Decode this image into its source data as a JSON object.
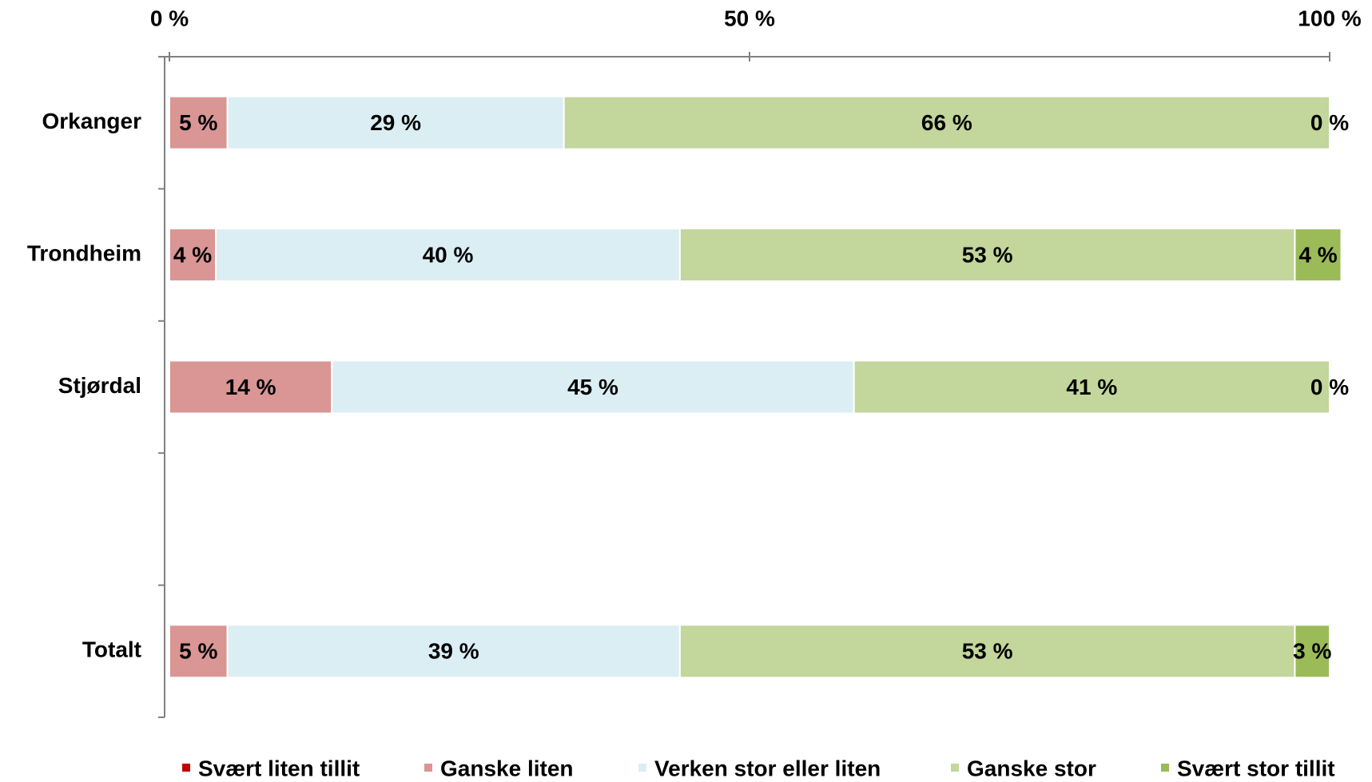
{
  "chart_data": {
    "type": "stacked-barh",
    "categories": [
      "Orkanger",
      "Trondheim",
      "Stjørdal",
      null,
      "Totalt"
    ],
    "series": [
      {
        "name": "Svært liten tillit",
        "color": "#c00000",
        "values": [
          0,
          0,
          0,
          null,
          0
        ]
      },
      {
        "name": "Ganske liten",
        "color": "#d99694",
        "values": [
          5,
          4,
          14,
          null,
          5
        ],
        "value_labels": [
          "5 %",
          "4 %",
          "14 %",
          null,
          "5 %"
        ]
      },
      {
        "name": "Verken stor eller liten",
        "color": "#dbeef4",
        "values": [
          29,
          40,
          45,
          null,
          39
        ],
        "value_labels": [
          "29 %",
          "40 %",
          "45 %",
          null,
          "39 %"
        ]
      },
      {
        "name": "Ganske stor",
        "color": "#c3d69b",
        "values": [
          66,
          53,
          41,
          null,
          53
        ],
        "value_labels": [
          "66 %",
          "53 %",
          "41 %",
          null,
          "53 %"
        ]
      },
      {
        "name": "Svært stor tillit",
        "color": "#9bbb59",
        "values": [
          0,
          4,
          0,
          null,
          3
        ],
        "value_labels": [
          "0 %",
          "4 %",
          "0 %",
          null,
          "3 %"
        ]
      }
    ],
    "xlim": [
      0,
      100
    ],
    "xticks": [
      {
        "value": 0,
        "label": "0 %"
      },
      {
        "value": 50,
        "label": "50 %"
      },
      {
        "value": 100,
        "label": "100 %"
      }
    ],
    "legend": "bottom"
  }
}
